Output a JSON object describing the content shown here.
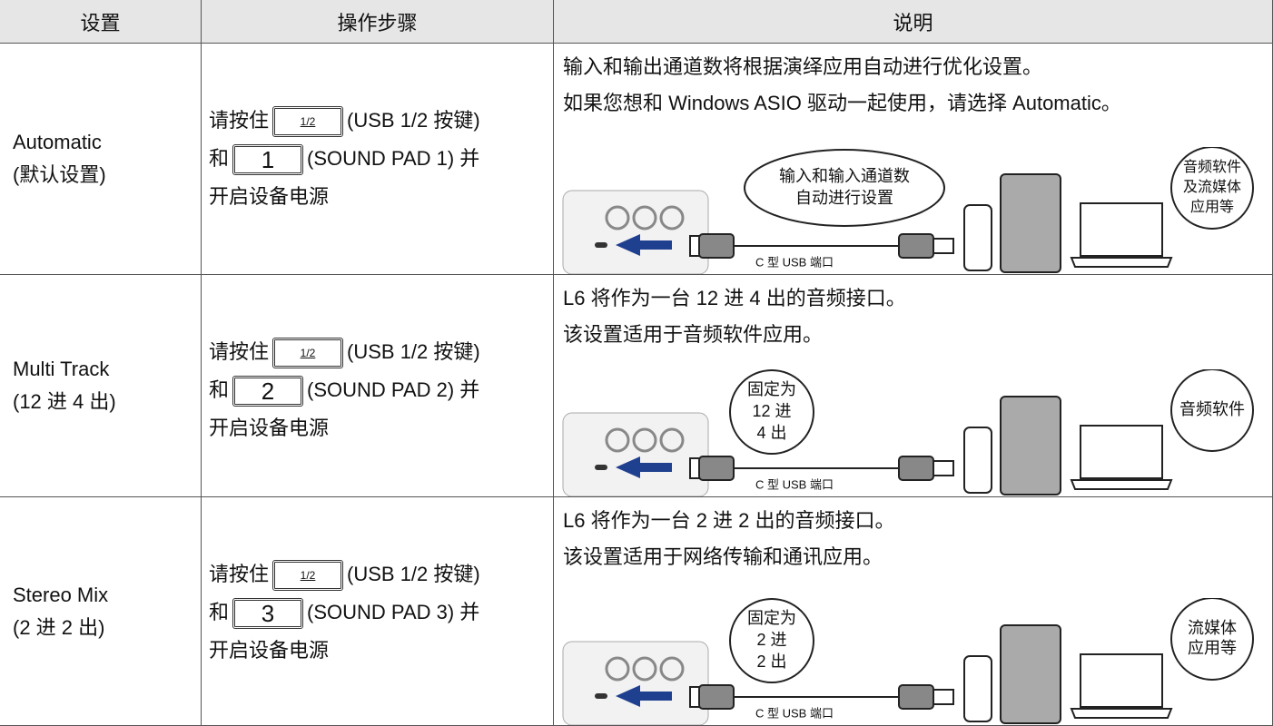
{
  "table": {
    "headers": [
      "设置",
      "操作步骤",
      "说明"
    ],
    "rows": [
      {
        "setting": [
          "Automatic",
          "(默认设置)"
        ],
        "steps": {
          "press": "请按住",
          "key_a": "1/2",
          "key_a_note": "(USB 1/2 按键)",
          "and": "和",
          "key_b": "1",
          "key_b_note": "(SOUND PAD 1) 并",
          "power_on": "开启设备电源"
        },
        "description": [
          "输入和输出通道数将根据演绎应用自动进行优化设置。",
          "如果您想和 Windows ASIO 驱动一起使用，请选择 Automatic。"
        ],
        "diagram": {
          "left_bubble": [
            "输入和输入通道数",
            "自动进行设置"
          ],
          "port_label": "C 型 USB 端口",
          "right_bubble": [
            "音频软件",
            "及流媒体",
            "应用等"
          ]
        }
      },
      {
        "setting": [
          "Multi Track",
          "(12 进 4 出)"
        ],
        "steps": {
          "press": "请按住",
          "key_a": "1/2",
          "key_a_note": "(USB 1/2 按键)",
          "and": "和",
          "key_b": "2",
          "key_b_note": "(SOUND PAD 2) 并",
          "power_on": "开启设备电源"
        },
        "description": [
          "L6 将作为一台 12 进 4 出的音频接口。",
          "该设置适用于音频软件应用。"
        ],
        "diagram": {
          "left_bubble": [
            "固定为",
            "12 进",
            "4 出"
          ],
          "port_label": "C 型 USB 端口",
          "right_bubble": [
            "音频软件"
          ]
        }
      },
      {
        "setting": [
          "Stereo Mix",
          "(2 进 2 出)"
        ],
        "steps": {
          "press": "请按住",
          "key_a": "1/2",
          "key_a_note": "(USB 1/2 按键)",
          "and": "和",
          "key_b": "3",
          "key_b_note": "(SOUND PAD 3) 并",
          "power_on": "开启设备电源"
        },
        "description": [
          "L6 将作为一台 2 进 2 出的音频接口。",
          "该设置适用于网络传输和通讯应用。"
        ],
        "diagram": {
          "left_bubble": [
            "固定为",
            "2 进",
            "2 出"
          ],
          "port_label": "C 型 USB 端口",
          "right_bubble": [
            "流媒体",
            "应用等"
          ]
        }
      }
    ]
  }
}
